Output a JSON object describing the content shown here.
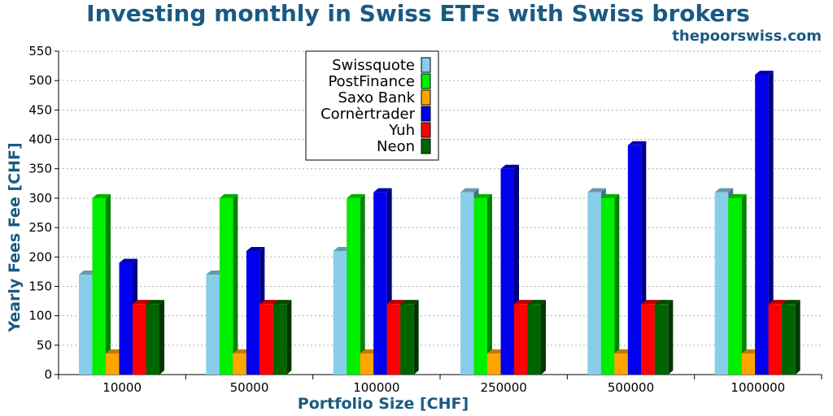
{
  "header": {
    "title": "Investing monthly in Swiss ETFs with Swiss brokers",
    "subtitle": "thepoorswiss.com"
  },
  "chart_data": {
    "type": "bar",
    "title": "Investing monthly in Swiss ETFs with Swiss brokers",
    "xlabel": "Portfolio Size [CHF]",
    "ylabel": "Yearly Fees Fee [CHF]",
    "ylim": [
      0,
      550
    ],
    "yticks": [
      0,
      50,
      100,
      150,
      200,
      250,
      300,
      350,
      400,
      450,
      500,
      550
    ],
    "grid": true,
    "legend_position": "top-center",
    "categories": [
      "10000",
      "50000",
      "100000",
      "250000",
      "500000",
      "1000000"
    ],
    "series": [
      {
        "name": "Swissquote",
        "color": "#87ceeb",
        "values": [
          170,
          170,
          210,
          310,
          310,
          310
        ]
      },
      {
        "name": "PostFinance",
        "color": "#00ee00",
        "values": [
          300,
          300,
          300,
          300,
          300,
          300
        ]
      },
      {
        "name": "Saxo Bank",
        "color": "#ffa500",
        "values": [
          36,
          36,
          36,
          36,
          36,
          36
        ]
      },
      {
        "name": "Cornèrtrader",
        "color": "#0000ee",
        "values": [
          190,
          210,
          310,
          350,
          390,
          510
        ]
      },
      {
        "name": "Yuh",
        "color": "#ff0000",
        "values": [
          120,
          120,
          120,
          120,
          120,
          120
        ]
      },
      {
        "name": "Neon",
        "color": "#006400",
        "values": [
          120,
          120,
          120,
          120,
          120,
          120
        ]
      }
    ]
  }
}
